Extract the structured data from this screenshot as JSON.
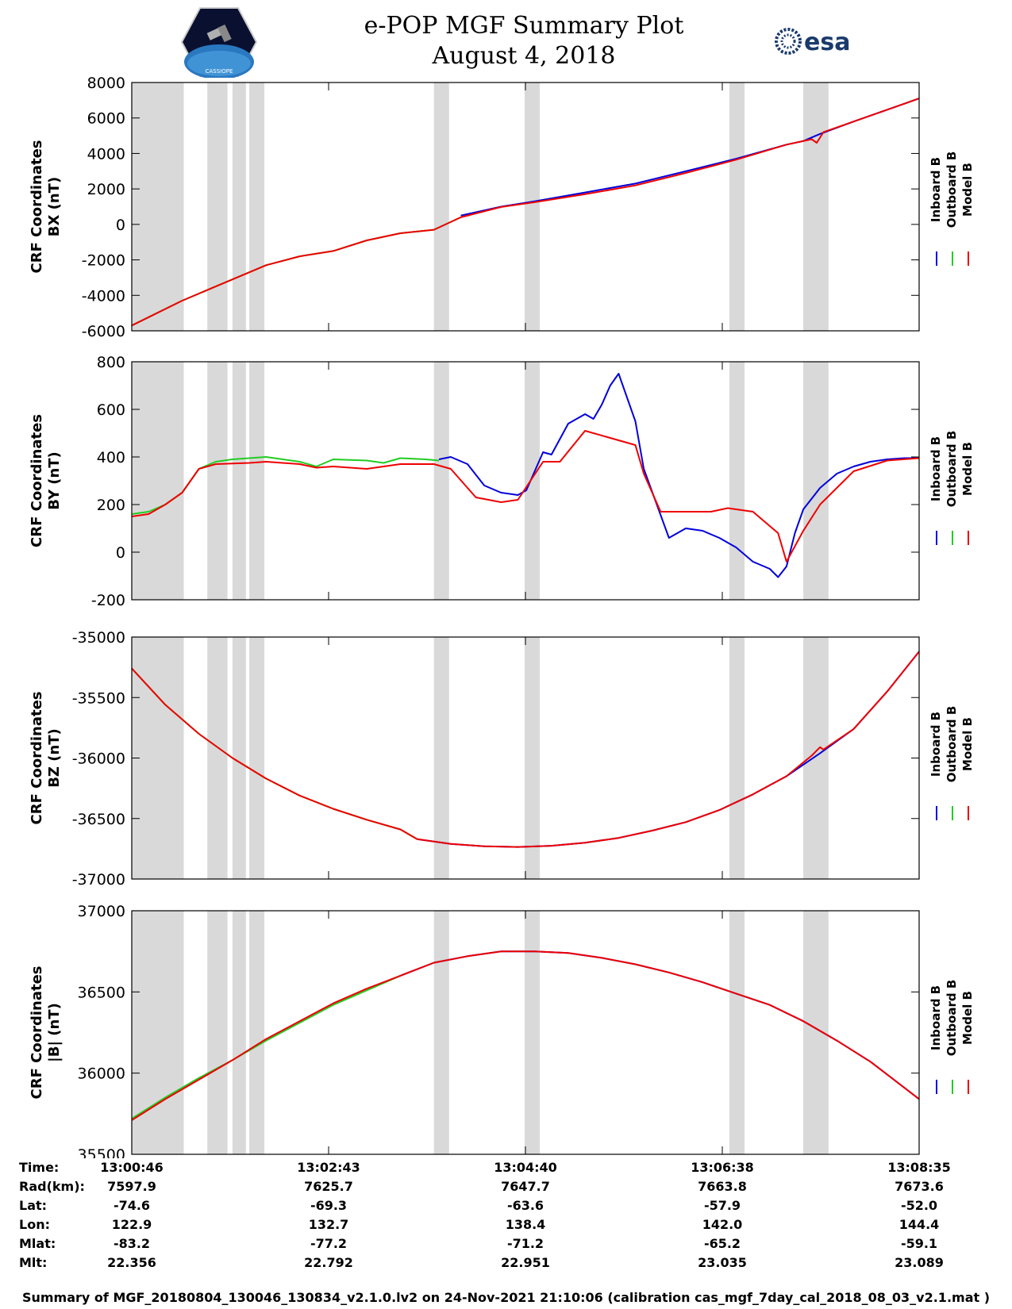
{
  "header": {
    "title": "e-POP MGF Summary Plot",
    "date": "August 4, 2018",
    "logo_left": "CASSIOPE",
    "logo_right": "esa"
  },
  "legend": [
    "Inboard B",
    "Outboard B",
    "Model B"
  ],
  "colors": {
    "inboard": "#0000dd",
    "outboard": "#22cc22",
    "model": "#ee0000",
    "gap_shade": "#d9d9d9"
  },
  "chart_data": [
    {
      "type": "line",
      "ylabel": [
        "CRF Coordinates",
        "BX (nT)"
      ],
      "ylim": [
        -6000,
        8000
      ],
      "yticks": [
        -6000,
        -4000,
        -2000,
        0,
        2000,
        4000,
        6000,
        8000
      ],
      "xlim": [
        0,
        469
      ],
      "xticks": [
        "13:00:46",
        "13:02:43",
        "13:04:40",
        "13:06:38",
        "13:08:35"
      ],
      "shaded_intervals": [
        [
          0,
          31
        ],
        [
          45,
          57
        ],
        [
          60,
          68
        ],
        [
          70,
          79
        ],
        [
          180,
          189
        ],
        [
          234,
          243
        ],
        [
          356,
          365
        ],
        [
          400,
          415
        ]
      ],
      "series": [
        {
          "name": "Outboard B",
          "x": [
            0,
            30,
            50,
            80,
            100,
            120,
            140,
            160,
            180,
            196
          ],
          "y": [
            -5700,
            -4300,
            -3500,
            -2300,
            -1800,
            -1500,
            -900,
            -500,
            -300,
            400
          ]
        },
        {
          "name": "Inboard B",
          "x": [
            196,
            220,
            240,
            270,
            300,
            330,
            360,
            390,
            400,
            410,
            430,
            469
          ],
          "y": [
            500,
            1000,
            1300,
            1800,
            2300,
            3000,
            3700,
            4500,
            4700,
            5100,
            5800,
            7100
          ]
        },
        {
          "name": "Model B",
          "x": [
            0,
            30,
            50,
            80,
            100,
            120,
            140,
            160,
            180,
            196,
            220,
            240,
            270,
            300,
            330,
            360,
            390,
            405,
            408,
            412,
            430,
            469
          ],
          "y": [
            -5700,
            -4300,
            -3500,
            -2300,
            -1800,
            -1500,
            -900,
            -500,
            -300,
            400,
            980,
            1250,
            1700,
            2200,
            2900,
            3650,
            4500,
            4800,
            4600,
            5200,
            5800,
            7100
          ]
        }
      ]
    },
    {
      "type": "line",
      "ylabel": [
        "CRF Coordinates",
        "BY (nT)"
      ],
      "ylim": [
        -200,
        800
      ],
      "yticks": [
        -200,
        0,
        200,
        400,
        600,
        800
      ],
      "xlim": [
        0,
        469
      ],
      "xticks": [
        "13:00:46",
        "13:02:43",
        "13:04:40",
        "13:06:38",
        "13:08:35"
      ],
      "shaded_intervals": [
        [
          0,
          31
        ],
        [
          45,
          57
        ],
        [
          60,
          68
        ],
        [
          70,
          79
        ],
        [
          180,
          189
        ],
        [
          234,
          243
        ],
        [
          356,
          365
        ],
        [
          400,
          415
        ]
      ],
      "series": [
        {
          "name": "Outboard B",
          "x": [
            0,
            10,
            20,
            30,
            40,
            50,
            60,
            70,
            80,
            100,
            110,
            120,
            140,
            150,
            160,
            175,
            183
          ],
          "y": [
            160,
            170,
            200,
            250,
            350,
            380,
            390,
            395,
            400,
            380,
            360,
            390,
            385,
            375,
            395,
            390,
            385
          ]
        },
        {
          "name": "Inboard B",
          "x": [
            183,
            190,
            200,
            210,
            220,
            230,
            235,
            245,
            250,
            260,
            265,
            270,
            275,
            280,
            285,
            290,
            300,
            305,
            320,
            330,
            340,
            350,
            360,
            370,
            380,
            385,
            390,
            395,
            400,
            410,
            420,
            430,
            440,
            450,
            460,
            469
          ],
          "y": [
            390,
            400,
            370,
            280,
            250,
            240,
            260,
            420,
            410,
            540,
            560,
            580,
            560,
            620,
            700,
            750,
            550,
            350,
            60,
            100,
            90,
            60,
            20,
            -40,
            -70,
            -105,
            -60,
            80,
            180,
            270,
            330,
            360,
            380,
            390,
            395,
            395
          ]
        },
        {
          "name": "Model B",
          "x": [
            0,
            10,
            20,
            30,
            40,
            50,
            70,
            80,
            100,
            110,
            120,
            140,
            160,
            180,
            190,
            205,
            220,
            230,
            245,
            255,
            270,
            285,
            300,
            305,
            315,
            330,
            345,
            355,
            370,
            385,
            390,
            400,
            410,
            430,
            450,
            469
          ],
          "y": [
            150,
            160,
            200,
            250,
            350,
            370,
            375,
            380,
            370,
            355,
            360,
            350,
            370,
            370,
            350,
            230,
            210,
            220,
            380,
            380,
            510,
            480,
            450,
            330,
            170,
            170,
            170,
            185,
            170,
            80,
            -40,
            90,
            200,
            340,
            385,
            395
          ]
        }
      ]
    },
    {
      "type": "line",
      "ylabel": [
        "CRF Coordinates",
        "BZ (nT)"
      ],
      "ylim": [
        -37000,
        -35000
      ],
      "yticks": [
        -37000,
        -36500,
        -36000,
        -35500,
        -35000
      ],
      "xlim": [
        0,
        469
      ],
      "xticks": [
        "13:00:46",
        "13:02:43",
        "13:04:40",
        "13:06:38",
        "13:08:35"
      ],
      "shaded_intervals": [
        [
          0,
          31
        ],
        [
          45,
          57
        ],
        [
          60,
          68
        ],
        [
          70,
          79
        ],
        [
          180,
          189
        ],
        [
          234,
          243
        ],
        [
          356,
          365
        ],
        [
          400,
          415
        ]
      ],
      "series": [
        {
          "name": "Outboard B",
          "x": [
            0,
            20,
            40,
            60,
            80,
            100,
            120,
            140,
            160,
            170
          ],
          "y": [
            -35260,
            -35560,
            -35800,
            -36000,
            -36170,
            -36310,
            -36420,
            -36510,
            -36590,
            -36670
          ]
        },
        {
          "name": "Inboard B",
          "x": [
            170,
            190,
            210,
            230,
            250,
            270,
            290,
            310,
            330,
            350,
            370,
            390,
            410,
            430,
            450,
            469
          ],
          "y": [
            -36670,
            -36710,
            -36730,
            -36735,
            -36725,
            -36700,
            -36660,
            -36600,
            -36530,
            -36430,
            -36300,
            -36150,
            -35960,
            -35760,
            -35450,
            -35120
          ]
        },
        {
          "name": "Model B",
          "x": [
            0,
            20,
            40,
            60,
            80,
            100,
            120,
            140,
            160,
            170,
            190,
            210,
            230,
            250,
            270,
            290,
            310,
            330,
            350,
            370,
            390,
            405,
            410,
            412,
            430,
            450,
            469
          ],
          "y": [
            -35260,
            -35560,
            -35800,
            -36000,
            -36170,
            -36310,
            -36420,
            -36510,
            -36590,
            -36670,
            -36710,
            -36730,
            -36735,
            -36725,
            -36700,
            -36660,
            -36600,
            -36530,
            -36430,
            -36300,
            -36150,
            -35980,
            -35910,
            -35930,
            -35760,
            -35450,
            -35120
          ]
        }
      ]
    },
    {
      "type": "line",
      "ylabel": [
        "CRF Coordinates",
        "|B| (nT)"
      ],
      "ylim": [
        35500,
        37000
      ],
      "yticks": [
        35500,
        36000,
        36500,
        37000
      ],
      "xlim": [
        0,
        469
      ],
      "xticks": [
        "13:00:46",
        "13:02:43",
        "13:04:40",
        "13:06:38",
        "13:08:35"
      ],
      "shaded_intervals": [
        [
          0,
          31
        ],
        [
          45,
          57
        ],
        [
          60,
          68
        ],
        [
          70,
          79
        ],
        [
          180,
          189
        ],
        [
          234,
          243
        ],
        [
          356,
          365
        ],
        [
          400,
          415
        ]
      ],
      "series": [
        {
          "name": "Outboard B",
          "x": [
            0,
            20,
            40,
            60,
            80,
            100,
            120,
            140,
            160
          ],
          "y": [
            35720,
            35850,
            35970,
            36080,
            36200,
            36310,
            36420,
            36510,
            36600
          ]
        },
        {
          "name": "Inboard B",
          "x": [
            160,
            180,
            200,
            220,
            240,
            260,
            280,
            300,
            320,
            340,
            360,
            380,
            400,
            420,
            440,
            469
          ],
          "y": [
            36600,
            36680,
            36720,
            36750,
            36750,
            36740,
            36710,
            36670,
            36620,
            36560,
            36490,
            36420,
            36320,
            36200,
            36070,
            35840
          ]
        },
        {
          "name": "Model B",
          "x": [
            0,
            20,
            40,
            60,
            80,
            100,
            120,
            140,
            160,
            180,
            200,
            220,
            240,
            260,
            280,
            300,
            320,
            340,
            360,
            380,
            400,
            420,
            440,
            469
          ],
          "y": [
            35710,
            35840,
            35960,
            36080,
            36210,
            36320,
            36430,
            36520,
            36600,
            36680,
            36720,
            36750,
            36750,
            36740,
            36710,
            36670,
            36620,
            36560,
            36490,
            36420,
            36320,
            36200,
            36070,
            35840
          ]
        }
      ]
    }
  ],
  "info_table": {
    "rows": [
      {
        "label": "Time:",
        "values": [
          "13:00:46",
          "13:02:43",
          "13:04:40",
          "13:06:38",
          "13:08:35"
        ]
      },
      {
        "label": "Rad(km):",
        "values": [
          "7597.9",
          "7625.7",
          "7647.7",
          "7663.8",
          "7673.6"
        ]
      },
      {
        "label": "Lat:",
        "values": [
          "-74.6",
          "-69.3",
          "-63.6",
          "-57.9",
          "-52.0"
        ]
      },
      {
        "label": "Lon:",
        "values": [
          "122.9",
          "132.7",
          "138.4",
          "142.0",
          "144.4"
        ]
      },
      {
        "label": "Mlat:",
        "values": [
          "-83.2",
          "-77.2",
          "-71.2",
          "-65.2",
          "-59.1"
        ]
      },
      {
        "label": "Mlt:",
        "values": [
          "22.356",
          "22.792",
          "22.951",
          "23.035",
          "23.089"
        ]
      }
    ]
  },
  "footer": "Summary of MGF_20180804_130046_130834_v2.1.0.lv2 on 24-Nov-2021 21:10:06 (calibration cas_mgf_7day_cal_2018_08_03_v2.1.mat )"
}
